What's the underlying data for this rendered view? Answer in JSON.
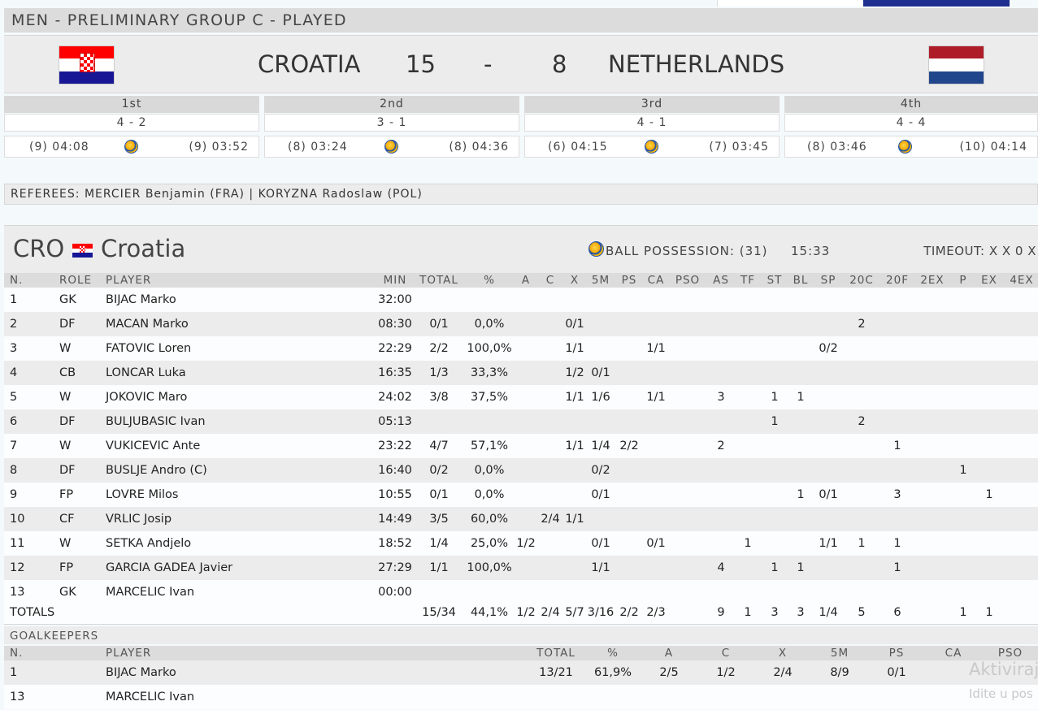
{
  "group_header": "MEN - PRELIMINARY GROUP C - PLAYED",
  "match": {
    "home": "CROATIA",
    "home_score": "15",
    "separator": "-",
    "away_score": "8",
    "away": "NETHERLANDS"
  },
  "quarters": [
    {
      "label": "1st",
      "score": "4 - 2",
      "home_time": "(9) 04:08",
      "away_time": "(9) 03:52"
    },
    {
      "label": "2nd",
      "score": "3 - 1",
      "home_time": "(8) 03:24",
      "away_time": "(8) 04:36"
    },
    {
      "label": "3rd",
      "score": "4 - 1",
      "home_time": "(6) 04:15",
      "away_time": "(7) 03:45"
    },
    {
      "label": "4th",
      "score": "4 - 4",
      "home_time": "(8) 03:46",
      "away_time": "(10) 04:14"
    }
  ],
  "referees": "REFEREES: MERCIER Benjamin (FRA) | KORYZNA Radoslaw (POL)",
  "team": {
    "code": "CRO",
    "name": "Croatia",
    "ball_possession_label": "BALL POSSESSION: (31)",
    "ball_possession_time": "15:33",
    "timeout": "TIMEOUT: X X 0 X"
  },
  "stats_headers": {
    "n": "N.",
    "role": "ROLE",
    "player": "PLAYER",
    "min": "MIN",
    "total": "TOTAL",
    "pct": "%",
    "a": "A",
    "c": "C",
    "x": "X",
    "m5": "5M",
    "ps": "PS",
    "ca": "CA",
    "pso": "PSO",
    "as": "AS",
    "tf": "TF",
    "st": "ST",
    "bl": "BL",
    "sp": "SP",
    "c20": "20C",
    "f20": "20F",
    "ex2": "2EX",
    "p": "P",
    "ex": "EX",
    "ex4": "4EX"
  },
  "players": [
    {
      "n": "1",
      "role": "GK",
      "player": "BIJAC Marko",
      "min": "32:00",
      "total": "",
      "pct": "",
      "a": "",
      "c": "",
      "x": "",
      "m5": "",
      "ps": "",
      "ca": "",
      "pso": "",
      "as": "",
      "tf": "",
      "st": "",
      "bl": "",
      "sp": "",
      "c20": "",
      "f20": "",
      "ex2": "",
      "p": "",
      "ex": "",
      "ex4": ""
    },
    {
      "n": "2",
      "role": "DF",
      "player": "MACAN Marko",
      "min": "08:30",
      "total": "0/1",
      "pct": "0,0%",
      "a": "",
      "c": "",
      "x": "0/1",
      "m5": "",
      "ps": "",
      "ca": "",
      "pso": "",
      "as": "",
      "tf": "",
      "st": "",
      "bl": "",
      "sp": "",
      "c20": "2",
      "f20": "",
      "ex2": "",
      "p": "",
      "ex": "",
      "ex4": ""
    },
    {
      "n": "3",
      "role": "W",
      "player": "FATOVIC Loren",
      "min": "22:29",
      "total": "2/2",
      "pct": "100,0%",
      "a": "",
      "c": "",
      "x": "1/1",
      "m5": "",
      "ps": "",
      "ca": "1/1",
      "pso": "",
      "as": "",
      "tf": "",
      "st": "",
      "bl": "",
      "sp": "0/2",
      "c20": "",
      "f20": "",
      "ex2": "",
      "p": "",
      "ex": "",
      "ex4": ""
    },
    {
      "n": "4",
      "role": "CB",
      "player": "LONCAR Luka",
      "min": "16:35",
      "total": "1/3",
      "pct": "33,3%",
      "a": "",
      "c": "",
      "x": "1/2",
      "m5": "0/1",
      "ps": "",
      "ca": "",
      "pso": "",
      "as": "",
      "tf": "",
      "st": "",
      "bl": "",
      "sp": "",
      "c20": "",
      "f20": "",
      "ex2": "",
      "p": "",
      "ex": "",
      "ex4": ""
    },
    {
      "n": "5",
      "role": "W",
      "player": "JOKOVIC Maro",
      "min": "24:02",
      "total": "3/8",
      "pct": "37,5%",
      "a": "",
      "c": "",
      "x": "1/1",
      "m5": "1/6",
      "ps": "",
      "ca": "1/1",
      "pso": "",
      "as": "3",
      "tf": "",
      "st": "1",
      "bl": "1",
      "sp": "",
      "c20": "",
      "f20": "",
      "ex2": "",
      "p": "",
      "ex": "",
      "ex4": ""
    },
    {
      "n": "6",
      "role": "DF",
      "player": "BULJUBASIC Ivan",
      "min": "05:13",
      "total": "",
      "pct": "",
      "a": "",
      "c": "",
      "x": "",
      "m5": "",
      "ps": "",
      "ca": "",
      "pso": "",
      "as": "",
      "tf": "",
      "st": "1",
      "bl": "",
      "sp": "",
      "c20": "2",
      "f20": "",
      "ex2": "",
      "p": "",
      "ex": "",
      "ex4": ""
    },
    {
      "n": "7",
      "role": "W",
      "player": "VUKICEVIC Ante",
      "min": "23:22",
      "total": "4/7",
      "pct": "57,1%",
      "a": "",
      "c": "",
      "x": "1/1",
      "m5": "1/4",
      "ps": "2/2",
      "ca": "",
      "pso": "",
      "as": "2",
      "tf": "",
      "st": "",
      "bl": "",
      "sp": "",
      "c20": "",
      "f20": "1",
      "ex2": "",
      "p": "",
      "ex": "",
      "ex4": ""
    },
    {
      "n": "8",
      "role": "DF",
      "player": "BUSLJE Andro (C)",
      "min": "16:40",
      "total": "0/2",
      "pct": "0,0%",
      "a": "",
      "c": "",
      "x": "",
      "m5": "0/2",
      "ps": "",
      "ca": "",
      "pso": "",
      "as": "",
      "tf": "",
      "st": "",
      "bl": "",
      "sp": "",
      "c20": "",
      "f20": "",
      "ex2": "",
      "p": "1",
      "ex": "",
      "ex4": ""
    },
    {
      "n": "9",
      "role": "FP",
      "player": "LOVRE Milos",
      "min": "10:55",
      "total": "0/1",
      "pct": "0,0%",
      "a": "",
      "c": "",
      "x": "",
      "m5": "0/1",
      "ps": "",
      "ca": "",
      "pso": "",
      "as": "",
      "tf": "",
      "st": "",
      "bl": "1",
      "sp": "0/1",
      "c20": "",
      "f20": "3",
      "ex2": "",
      "p": "",
      "ex": "1",
      "ex4": ""
    },
    {
      "n": "10",
      "role": "CF",
      "player": "VRLIC Josip",
      "min": "14:49",
      "total": "3/5",
      "pct": "60,0%",
      "a": "",
      "c": "2/4",
      "x": "1/1",
      "m5": "",
      "ps": "",
      "ca": "",
      "pso": "",
      "as": "",
      "tf": "",
      "st": "",
      "bl": "",
      "sp": "",
      "c20": "",
      "f20": "",
      "ex2": "",
      "p": "",
      "ex": "",
      "ex4": ""
    },
    {
      "n": "11",
      "role": "W",
      "player": "SETKA Andjelo",
      "min": "18:52",
      "total": "1/4",
      "pct": "25,0%",
      "a": "1/2",
      "c": "",
      "x": "",
      "m5": "0/1",
      "ps": "",
      "ca": "0/1",
      "pso": "",
      "as": "",
      "tf": "1",
      "st": "",
      "bl": "",
      "sp": "1/1",
      "c20": "1",
      "f20": "1",
      "ex2": "",
      "p": "",
      "ex": "",
      "ex4": ""
    },
    {
      "n": "12",
      "role": "FP",
      "player": "GARCIA GADEA Javier",
      "min": "27:29",
      "total": "1/1",
      "pct": "100,0%",
      "a": "",
      "c": "",
      "x": "",
      "m5": "1/1",
      "ps": "",
      "ca": "",
      "pso": "",
      "as": "4",
      "tf": "",
      "st": "1",
      "bl": "1",
      "sp": "",
      "c20": "",
      "f20": "1",
      "ex2": "",
      "p": "",
      "ex": "",
      "ex4": ""
    },
    {
      "n": "13",
      "role": "GK",
      "player": "MARCELIC Ivan",
      "min": "00:00",
      "total": "",
      "pct": "",
      "a": "",
      "c": "",
      "x": "",
      "m5": "",
      "ps": "",
      "ca": "",
      "pso": "",
      "as": "",
      "tf": "",
      "st": "",
      "bl": "",
      "sp": "",
      "c20": "",
      "f20": "",
      "ex2": "",
      "p": "",
      "ex": "",
      "ex4": ""
    }
  ],
  "totals": {
    "label": "TOTALS",
    "total": "15/34",
    "pct": "44,1%",
    "a": "1/2",
    "c": "2/4",
    "x": "5/7",
    "m5": "3/16",
    "ps": "2/2",
    "ca": "2/3",
    "pso": "",
    "as": "9",
    "tf": "1",
    "st": "3",
    "bl": "3",
    "sp": "1/4",
    "c20": "5",
    "f20": "6",
    "ex2": "",
    "p": "1",
    "ex": "1",
    "ex4": ""
  },
  "goalkeepers": {
    "title": "GOALKEEPERS",
    "headers": {
      "n": "N.",
      "player": "PLAYER",
      "total": "TOTAL",
      "pct": "%",
      "a": "A",
      "c": "C",
      "x": "X",
      "m5": "5M",
      "ps": "PS",
      "ca": "CA",
      "pso": "PSO"
    },
    "rows": [
      {
        "n": "1",
        "player": "BIJAC Marko",
        "total": "13/21",
        "pct": "61,9%",
        "a": "2/5",
        "c": "1/2",
        "x": "2/4",
        "m5": "8/9",
        "ps": "0/1",
        "ca": "",
        "pso": ""
      },
      {
        "n": "13",
        "player": "MARCELIC Ivan",
        "total": "",
        "pct": "",
        "a": "",
        "c": "",
        "x": "",
        "m5": "",
        "ps": "",
        "ca": "",
        "pso": ""
      }
    ]
  },
  "watermark": {
    "line1": "Aktiviraj",
    "line2": "Idite u pos"
  },
  "colors": {
    "croatia_red": "#ff0000",
    "croatia_blue": "#171796",
    "nl_red": "#ae1c28",
    "nl_blue": "#21468b"
  }
}
